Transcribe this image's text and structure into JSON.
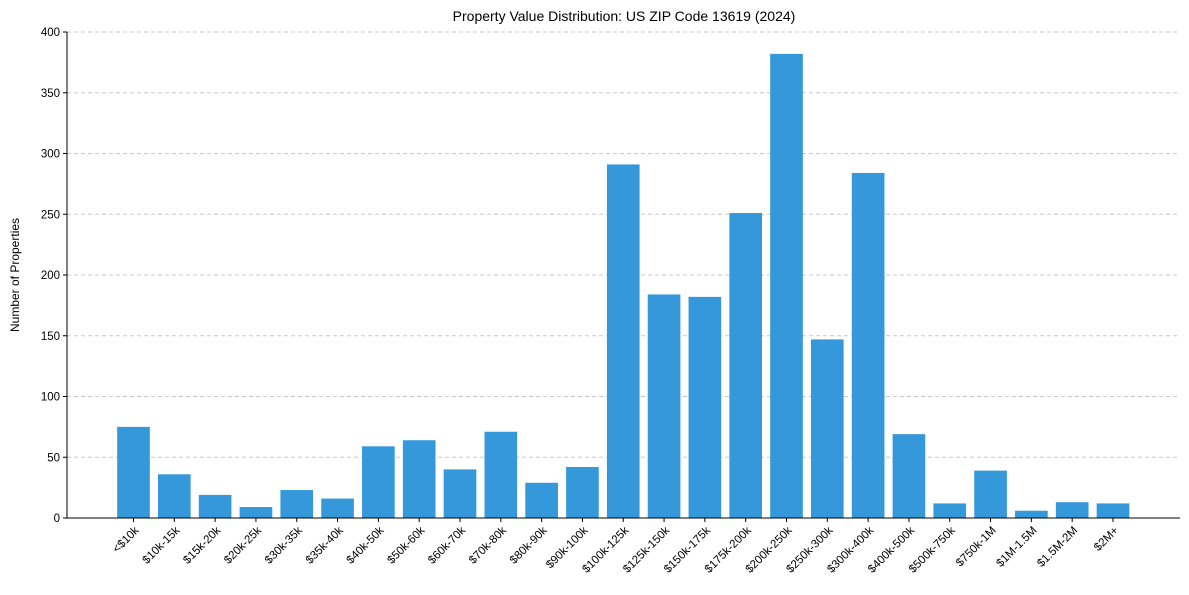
{
  "chart_data": {
    "type": "bar",
    "title": "Property Value Distribution: US ZIP Code 13619 (2024)",
    "xlabel": "",
    "ylabel": "Number of Properties",
    "categories": [
      "<$10k",
      "$10k-15k",
      "$15k-20k",
      "$20k-25k",
      "$30k-35k",
      "$35k-40k",
      "$40k-50k",
      "$50k-60k",
      "$60k-70k",
      "$70k-80k",
      "$80k-90k",
      "$90k-100k",
      "$100k-125k",
      "$125k-150k",
      "$150k-175k",
      "$175k-200k",
      "$200k-250k",
      "$250k-300k",
      "$300k-400k",
      "$400k-500k",
      "$500k-750k",
      "$750k-1M",
      "$1M-1.5M",
      "$1.5M-2M",
      "$2M+"
    ],
    "values": [
      75,
      36,
      19,
      9,
      23,
      16,
      59,
      64,
      40,
      71,
      29,
      42,
      291,
      184,
      182,
      251,
      382,
      147,
      284,
      69,
      12,
      39,
      6,
      13,
      12
    ],
    "ylim": [
      0,
      400
    ],
    "yticks": [
      0,
      50,
      100,
      150,
      200,
      250,
      300,
      350,
      400
    ],
    "grid": true,
    "bar_color": "#3498db"
  }
}
